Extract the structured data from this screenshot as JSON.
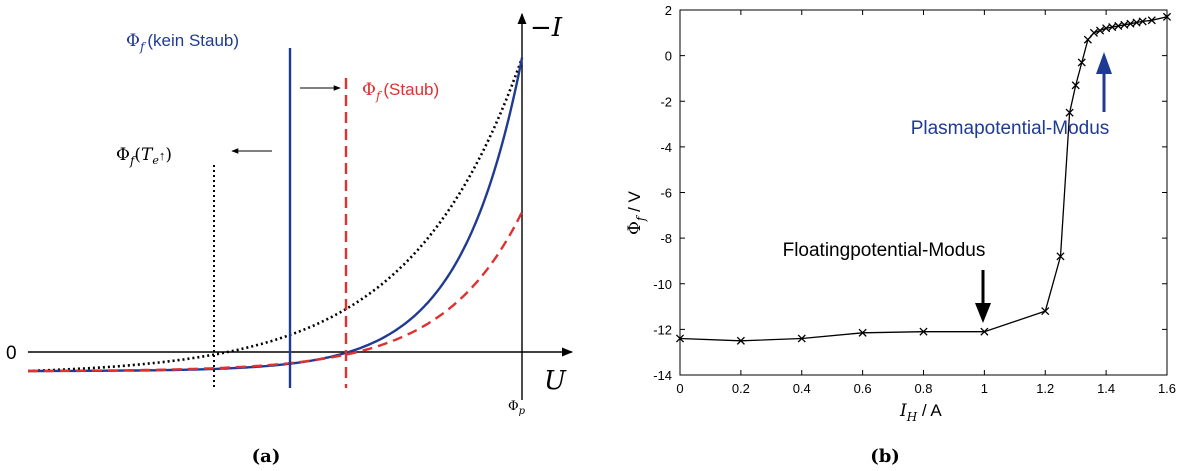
{
  "chart_data": [
    {
      "type": "line",
      "panel_label": "(a)",
      "xlabel": "U",
      "ylabel": "−I",
      "zero_label": "0",
      "plasma_potential_label": "Φ",
      "plasma_potential_sub": "p",
      "annotations": {
        "phi_f_kein_staub": {
          "symbol": "Φ",
          "sub": "f",
          "text": "(kein Staub)"
        },
        "phi_f_staub": {
          "symbol": "Φ",
          "sub": "f",
          "text": "(Staub)"
        },
        "phi_f_te": {
          "symbol": "Φ",
          "sub": "f",
          "paren_open": "(",
          "var": "T",
          "var_sub": "e",
          "arrow": "↑",
          "paren_close": ")"
        }
      },
      "colors": {
        "kein_staub": "#1f3a93",
        "staub": "#e03030",
        "te": "#000000"
      }
    },
    {
      "type": "line",
      "panel_label": "(b)",
      "xlabel": {
        "var": "I",
        "sub": "H",
        "unit": " / A"
      },
      "ylabel": {
        "var": "Φ",
        "sub": "f",
        "unit": " / V"
      },
      "xlim": [
        0,
        1.6
      ],
      "ylim": [
        -14,
        2
      ],
      "xticks": [
        "0",
        "0.2",
        "0.4",
        "0.6",
        "0.8",
        "1",
        "1.2",
        "1.4",
        "1.6"
      ],
      "yticks": [
        "2",
        "0",
        "-2",
        "-4",
        "-6",
        "-8",
        "-10",
        "-12",
        "-14"
      ],
      "grid": false,
      "marker": "x",
      "series": [
        {
          "x": [
            0,
            0.2,
            0.4,
            0.6,
            0.8,
            1.0,
            1.2,
            1.25,
            1.28,
            1.3,
            1.32,
            1.34,
            1.36,
            1.38,
            1.4,
            1.42,
            1.44,
            1.46,
            1.48,
            1.5,
            1.52,
            1.55,
            1.6
          ],
          "y": [
            -12.4,
            -12.5,
            -12.4,
            -12.15,
            -12.1,
            -12.1,
            -11.2,
            -8.8,
            -2.5,
            -1.3,
            -0.3,
            0.7,
            1.0,
            1.1,
            1.2,
            1.25,
            1.3,
            1.35,
            1.4,
            1.45,
            1.5,
            1.55,
            1.7
          ]
        }
      ],
      "annotations": [
        {
          "text": "Floatingpotential-Modus",
          "x": 1.0,
          "y": -12.1,
          "color": "#000000"
        },
        {
          "text": "Plasmapotential-Modus",
          "x": 1.4,
          "y": 1.2,
          "color": "#1f3a93"
        }
      ]
    }
  ]
}
